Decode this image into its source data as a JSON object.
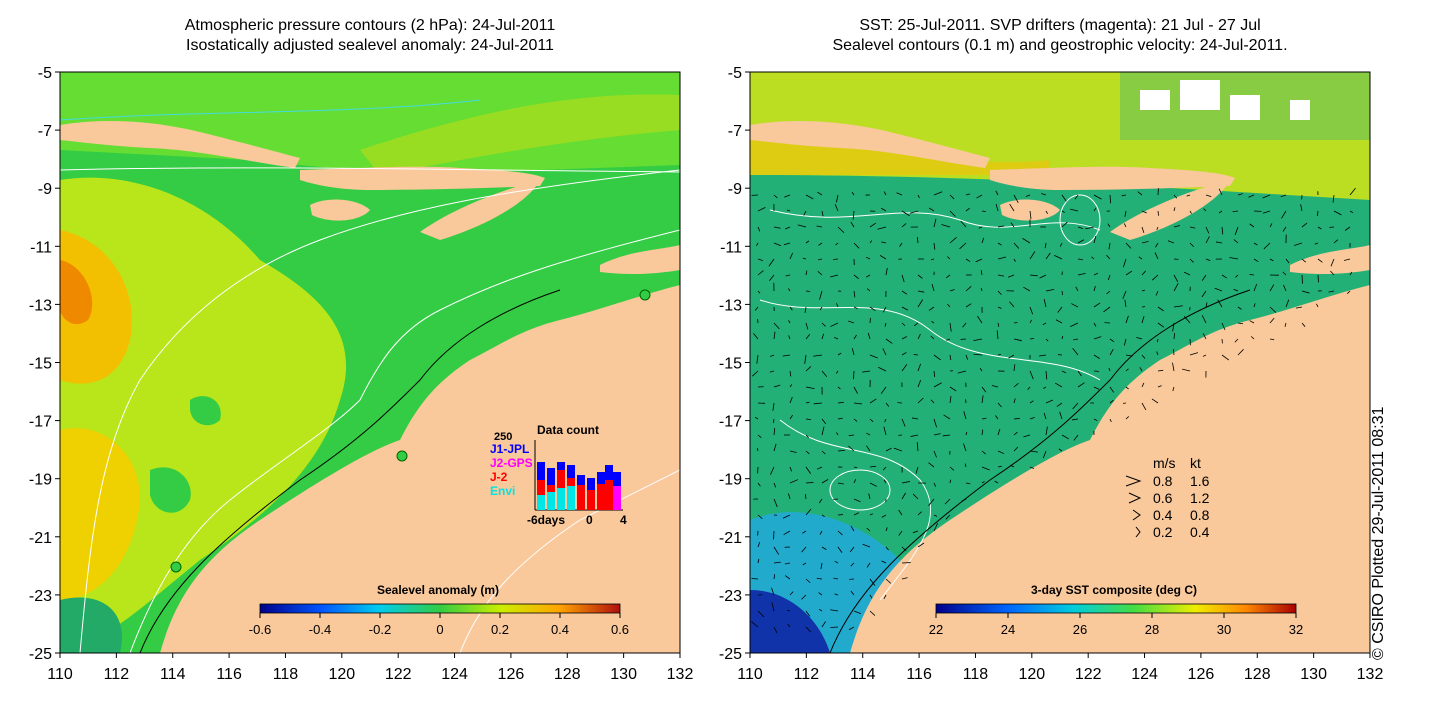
{
  "left_panel": {
    "title_line1": "Atmospheric pressure contours (2 hPa): 24-Jul-2011",
    "title_line2": "Isostatically adjusted sealevel anomaly: 24-Jul-2011",
    "colorbar_title": "Sealevel anomaly (m)",
    "colorbar_ticks": [
      "-0.6",
      "-0.4",
      "-0.2",
      "0",
      "0.2",
      "0.4",
      "0.6"
    ],
    "inset": {
      "title": "Data count",
      "ymax_label": "250",
      "legend": [
        {
          "label": "J1-JPL",
          "color": "#0000ff"
        },
        {
          "label": "J2-GPS",
          "color": "#ff00ff"
        },
        {
          "label": "J-2",
          "color": "#ff0000"
        },
        {
          "label": "Envi",
          "color": "#00e5e5"
        }
      ],
      "x_labels": [
        "-6days",
        "0",
        "4"
      ]
    }
  },
  "right_panel": {
    "title_line1": "SST: 25-Jul-2011. SVP drifters (magenta): 21 Jul - 27 Jul",
    "title_line2": "Sealevel contours (0.1 m) and geostrophic velocity: 24-Jul-2011.",
    "colorbar_title": "3-day SST composite (deg C)",
    "colorbar_ticks": [
      "22",
      "24",
      "26",
      "28",
      "30",
      "32"
    ],
    "speed_legend": {
      "header_ms": "m/s",
      "header_kt": "kt",
      "rows": [
        {
          "ms": "0.8",
          "kt": "1.6"
        },
        {
          "ms": "0.6",
          "kt": "1.2"
        },
        {
          "ms": "0.4",
          "kt": "0.8"
        },
        {
          "ms": "0.2",
          "kt": "0.4"
        }
      ]
    }
  },
  "axes": {
    "lat_ticks": [
      "-5",
      "-7",
      "-9",
      "-11",
      "-13",
      "-15",
      "-17",
      "-19",
      "-21",
      "-23",
      "-25"
    ],
    "lon_ticks": [
      "110",
      "112",
      "114",
      "116",
      "118",
      "120",
      "122",
      "124",
      "126",
      "128",
      "130",
      "132"
    ]
  },
  "credit": "© CSIRO Plotted 29-Jul-2011 08:31",
  "colors": {
    "land": "#f9c89b",
    "sla_mid": "#33cc44",
    "sst_mid": "#22b077"
  }
}
